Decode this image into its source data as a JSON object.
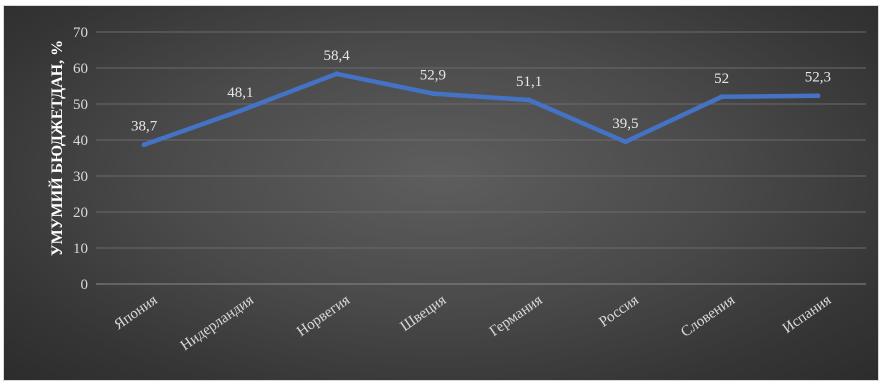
{
  "chart_data": {
    "type": "line",
    "title": "",
    "xlabel": "",
    "ylabel": "УМУМИЙ БЮДЖЕТДАН, %",
    "ylim": [
      0,
      70
    ],
    "yticks": [
      "0",
      "10",
      "20",
      "30",
      "40",
      "50",
      "60",
      "70"
    ],
    "categories": [
      "Япония",
      "Нидерландия",
      "Норвегия",
      "Швеция",
      "Германия",
      "Россия",
      "Словения",
      "Испания"
    ],
    "series": [
      {
        "values": [
          38.7,
          48.1,
          58.4,
          52.9,
          51.1,
          39.5,
          52,
          52.3
        ],
        "data_labels": [
          "38,7",
          "48,1",
          "58,4",
          "52,9",
          "51,1",
          "39,5",
          "52",
          "52,3"
        ]
      }
    ],
    "grid": true,
    "legend": "none",
    "colors": {
      "line": "#4472C4",
      "grid": "#6b6b6b",
      "background": "#474747"
    }
  }
}
